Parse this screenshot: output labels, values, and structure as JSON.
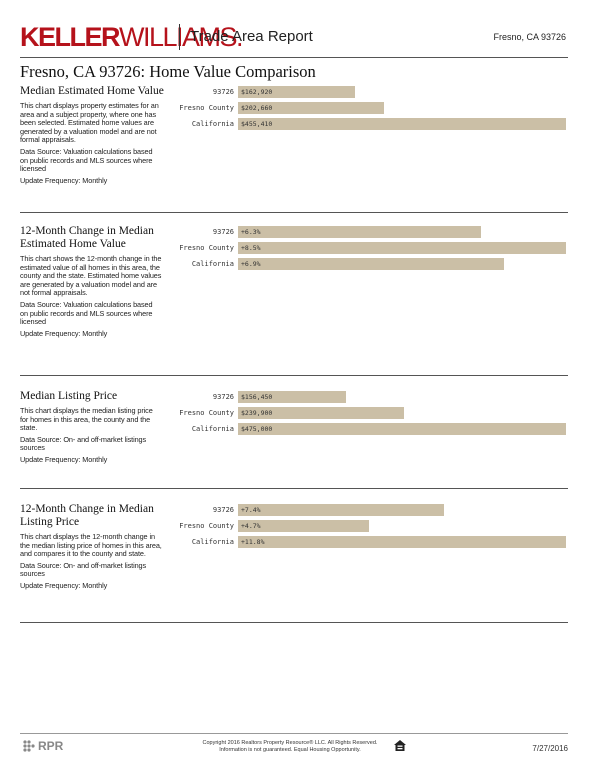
{
  "header": {
    "logo_bold": "KELLER",
    "logo_light": "WILLIAMS.",
    "report_title": "Trade Area Report",
    "location": "Fresno, CA 93726"
  },
  "title": "Fresno, CA 93726: Home Value Comparison",
  "sections": [
    {
      "title": "Median Estimated Home Value",
      "paragraphs": [
        "This chart displays property estimates for an area and a subject property, where one has been selected. Estimated home values are generated by a valuation model and are not formal appraisals.",
        "Data Source: Valuation calculations based on public records and MLS sources where licensed",
        "Update Frequency: Monthly"
      ],
      "chart": {
        "type": "bar",
        "categories": [
          "93726",
          "Fresno County",
          "California"
        ],
        "values": [
          162920,
          202660,
          455410
        ],
        "value_labels": [
          "$162,920",
          "$202,660",
          "$455,410"
        ],
        "color": "#cbbfa6"
      }
    },
    {
      "title": "12-Month Change in Median Estimated Home Value",
      "paragraphs": [
        "This chart shows the 12-month change in the estimated value of all homes in this area, the county and the state. Estimated home values are generated by a valuation model and are not formal appraisals.",
        "Data Source: Valuation calculations based on public records and MLS sources where licensed",
        "Update Frequency: Monthly"
      ],
      "chart": {
        "type": "bar",
        "categories": [
          "93726",
          "Fresno County",
          "California"
        ],
        "values": [
          6.3,
          8.5,
          6.9
        ],
        "value_labels": [
          "+6.3%",
          "+8.5%",
          "+6.9%"
        ],
        "color": "#cbbfa6"
      }
    },
    {
      "title": "Median Listing Price",
      "paragraphs": [
        "This chart displays the median listing price for homes in this area, the county and the state.",
        "Data Source: On- and off-market listings sources",
        "Update Frequency: Monthly"
      ],
      "chart": {
        "type": "bar",
        "categories": [
          "93726",
          "Fresno County",
          "California"
        ],
        "values": [
          156450,
          239900,
          475000
        ],
        "value_labels": [
          "$156,450",
          "$239,900",
          "$475,000"
        ],
        "color": "#cbbfa6"
      }
    },
    {
      "title": "12-Month Change in Median Listing Price",
      "paragraphs": [
        "This chart displays the 12-month change in the median listing price of homes in this area, and compares it to the county and state.",
        "Data Source: On- and off-market listings sources",
        "Update Frequency: Monthly"
      ],
      "chart": {
        "type": "bar",
        "categories": [
          "93726",
          "Fresno County",
          "California"
        ],
        "values": [
          7.4,
          4.7,
          11.8
        ],
        "value_labels": [
          "+7.4%",
          "+4.7%",
          "+11.8%"
        ],
        "color": "#cbbfa6"
      }
    }
  ],
  "footer": {
    "logo": "RPR",
    "copyright": [
      "Copyright 2016 Realtors Property Resource® LLC. All Rights Reserved.",
      "Information is not guaranteed. Equal Housing Opportunity."
    ],
    "date": "7/27/2016"
  }
}
